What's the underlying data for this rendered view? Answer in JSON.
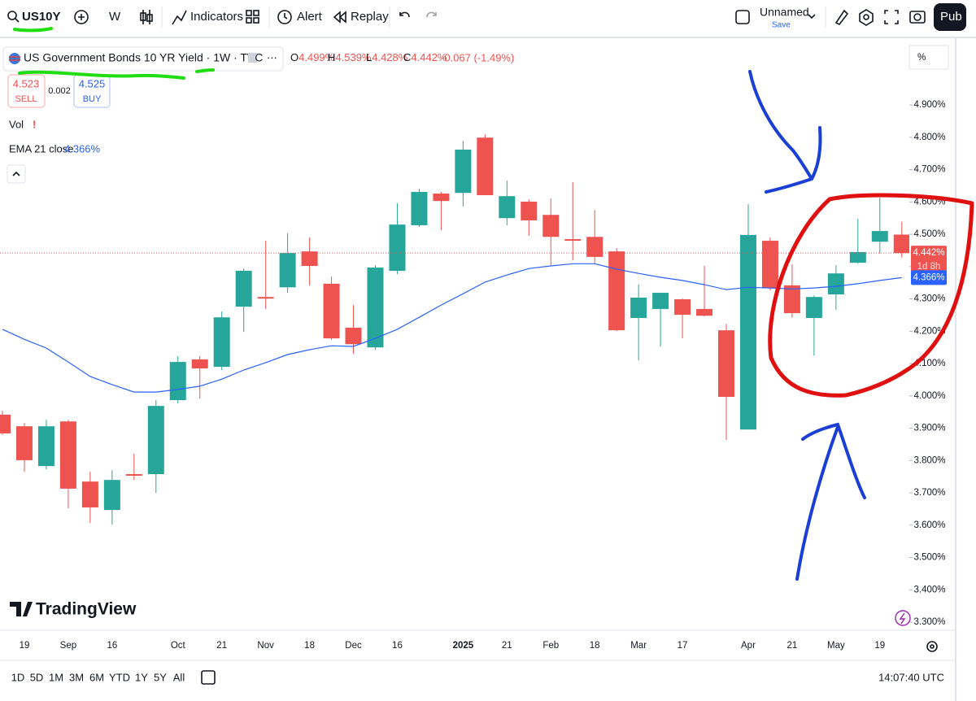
{
  "toolbar": {
    "symbol": "US10Y",
    "interval": "W",
    "indicators": "Indicators",
    "alert": "Alert",
    "replay": "Replay",
    "layout_name": "Unnamed",
    "save": "Save",
    "publish": "Pub"
  },
  "legend": {
    "title": "US Government Bonds 10 YR Yield · 1W · TVC",
    "ohlc": [
      {
        "label": "O",
        "value": "4.499%"
      },
      {
        "label": "H",
        "value": "4.539%"
      },
      {
        "label": "L",
        "value": "4.428%"
      },
      {
        "label": "C",
        "value": "4.442%"
      }
    ],
    "change": "-0.067 (-1.49%)",
    "sell_price": "4.523",
    "sell": "SELL",
    "spread": "0.002",
    "buy_price": "4.525",
    "buy": "BUY",
    "volume": "Vol",
    "ema_value": "4.366%"
  },
  "chart_data": {
    "type": "candlestick",
    "categories": [
      null,
      "19",
      null,
      "Sep",
      null,
      "16",
      null,
      null,
      "Oct",
      null,
      "21",
      null,
      "Nov",
      null,
      "18",
      null,
      "Dec",
      null,
      "16",
      null,
      null,
      "2025",
      null,
      "21",
      null,
      "Feb",
      null,
      "18",
      null,
      "Mar",
      null,
      "17",
      null,
      null,
      "Apr",
      null,
      "21",
      null,
      "May",
      null,
      "19",
      null
    ],
    "open": [
      3.942,
      3.906,
      3.783,
      3.921,
      3.735,
      3.647,
      3.758,
      3.758,
      3.987,
      4.113,
      4.09,
      4.276,
      4.306,
      4.336,
      4.447,
      4.347,
      4.211,
      4.15,
      4.387,
      4.528,
      4.626,
      4.628,
      4.799,
      4.55,
      4.601,
      4.56,
      4.485,
      4.492,
      4.447,
      4.241,
      4.269,
      4.299,
      4.269,
      4.203,
      3.896,
      4.48,
      4.342,
      4.241,
      4.314,
      4.412,
      4.477,
      4.499
    ],
    "high": [
      3.954,
      3.916,
      3.926,
      3.926,
      3.765,
      3.77,
      3.821,
      3.987,
      4.123,
      4.123,
      4.261,
      4.394,
      4.48,
      4.503,
      4.49,
      4.369,
      4.281,
      4.404,
      4.596,
      4.641,
      4.631,
      4.789,
      4.809,
      4.666,
      4.608,
      4.611,
      4.661,
      4.575,
      4.457,
      4.344,
      4.319,
      4.301,
      4.402,
      4.223,
      4.593,
      4.49,
      4.407,
      4.311,
      4.404,
      4.548,
      4.613,
      4.539
    ],
    "low": [
      3.879,
      3.765,
      3.773,
      3.652,
      3.607,
      3.602,
      3.74,
      3.7,
      3.977,
      3.992,
      4.08,
      4.198,
      4.269,
      4.319,
      4.342,
      4.173,
      4.13,
      4.143,
      4.377,
      4.523,
      4.513,
      4.586,
      4.621,
      4.528,
      4.495,
      4.404,
      4.42,
      4.407,
      4.201,
      4.11,
      4.153,
      4.178,
      4.246,
      3.864,
      3.896,
      4.326,
      4.243,
      4.125,
      4.266,
      4.409,
      4.44,
      4.428
    ],
    "close": [
      3.884,
      3.801,
      3.906,
      3.713,
      3.655,
      3.74,
      3.753,
      3.969,
      4.105,
      4.085,
      4.243,
      4.387,
      4.301,
      4.442,
      4.402,
      4.178,
      4.16,
      4.397,
      4.53,
      4.631,
      4.603,
      4.762,
      4.621,
      4.618,
      4.543,
      4.492,
      4.48,
      4.43,
      4.203,
      4.304,
      4.319,
      4.251,
      4.248,
      3.997,
      4.498,
      4.334,
      4.256,
      4.306,
      4.379,
      4.445,
      4.51,
      4.442
    ],
    "up_color": "#26a69a",
    "down_color": "#ef5350",
    "series": [
      {
        "name": "EMA 21 close",
        "color": "#2962ff",
        "values": [
          4.206,
          4.175,
          4.148,
          4.105,
          4.06,
          4.035,
          4.012,
          4.012,
          4.02,
          4.03,
          4.052,
          4.08,
          4.103,
          4.128,
          4.143,
          4.155,
          4.153,
          4.178,
          4.206,
          4.243,
          4.281,
          4.316,
          4.352,
          4.374,
          4.394,
          4.402,
          4.409,
          4.409,
          4.392,
          4.379,
          4.367,
          4.357,
          4.344,
          4.329,
          4.336,
          4.334,
          4.331,
          4.334,
          4.339,
          4.347,
          4.357,
          4.366
        ]
      }
    ],
    "ylim": [
      3.275,
      5.099
    ],
    "yticks": [
      {
        "value": 3.3,
        "label": "3.300%"
      },
      {
        "value": 3.4,
        "label": "3.400%"
      },
      {
        "value": 3.5,
        "label": "3.500%"
      },
      {
        "value": 3.6,
        "label": "3.600%"
      },
      {
        "value": 3.7,
        "label": "3.700%"
      },
      {
        "value": 3.8,
        "label": "3.800%"
      },
      {
        "value": 3.9,
        "label": "3.900%"
      },
      {
        "value": 4.0,
        "label": "4.000%"
      },
      {
        "value": 4.1,
        "label": "4.100%"
      },
      {
        "value": 4.2,
        "label": "4.200%"
      },
      {
        "value": 4.3,
        "label": "4.300%"
      },
      {
        "value": 4.4,
        "label": "4.400%"
      },
      {
        "value": 4.5,
        "label": "4.500%"
      },
      {
        "value": 4.6,
        "label": "4.600%"
      },
      {
        "value": 4.7,
        "label": "4.700%"
      },
      {
        "value": 4.8,
        "label": "4.800%"
      },
      {
        "value": 4.9,
        "label": "4.900%"
      }
    ],
    "grid": false,
    "axis_unit": "%",
    "last_price_label": "4.442%",
    "countdown": "1d 8h",
    "ema_label": "4.366%"
  },
  "footer": {
    "ranges": [
      "1D",
      "5D",
      "1M",
      "3M",
      "6M",
      "YTD",
      "1Y",
      "5Y",
      "All"
    ],
    "time": "14:07:40 UTC",
    "logo": "TradingView"
  }
}
